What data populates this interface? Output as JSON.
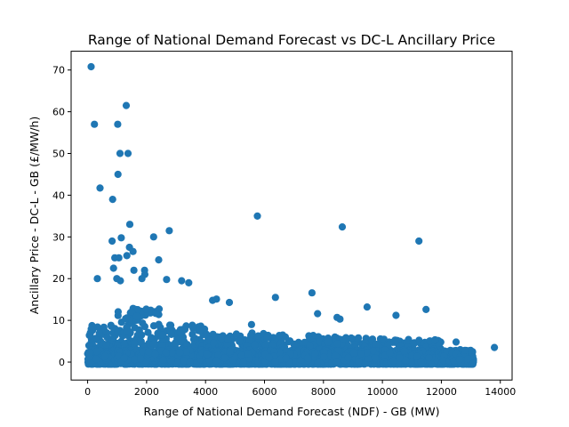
{
  "chart_data": {
    "type": "scatter",
    "title": "Range of National Demand Forecast vs DC-L Ancillary Price",
    "xlabel": "Range of National Demand Forecast (NDF) - GB (MW)",
    "ylabel": "Ancillary Price - DC-L - GB (£/MW/h)",
    "xlim": [
      -560,
      14400
    ],
    "ylim": [
      -4.3,
      74.5
    ],
    "x_ticks": [
      0,
      2000,
      4000,
      6000,
      8000,
      10000,
      12000,
      14000
    ],
    "y_ticks": [
      0,
      10,
      20,
      30,
      40,
      50,
      60,
      70
    ],
    "grid": false,
    "legend": "none",
    "marker_color": "#1f77b4",
    "outlier_points": [
      [
        120,
        70.8
      ],
      [
        230,
        57
      ],
      [
        1020,
        57
      ],
      [
        1310,
        61.5
      ],
      [
        1370,
        50
      ],
      [
        1100,
        50
      ],
      [
        1030,
        45
      ],
      [
        420,
        41.7
      ],
      [
        850,
        39
      ],
      [
        1430,
        33
      ],
      [
        5760,
        35
      ],
      [
        8640,
        32.4
      ],
      [
        11240,
        29
      ],
      [
        2770,
        31.5
      ],
      [
        2240,
        30
      ],
      [
        1140,
        29.8
      ],
      [
        830,
        29
      ],
      [
        1420,
        27.5
      ],
      [
        1540,
        26.5
      ],
      [
        920,
        25
      ],
      [
        1060,
        25
      ],
      [
        1330,
        25.5
      ],
      [
        2410,
        24.5
      ],
      [
        1570,
        22
      ],
      [
        1930,
        22
      ],
      [
        1940,
        21
      ],
      [
        880,
        22.5
      ],
      [
        330,
        20
      ],
      [
        990,
        20
      ],
      [
        1110,
        19.5
      ],
      [
        1840,
        20
      ],
      [
        2680,
        19.8
      ],
      [
        3190,
        19.5
      ],
      [
        3430,
        19
      ],
      [
        4240,
        14.8
      ],
      [
        4370,
        15.1
      ],
      [
        4810,
        14.3
      ],
      [
        6370,
        15.5
      ],
      [
        7610,
        16.6
      ],
      [
        7800,
        11.6
      ],
      [
        8460,
        10.7
      ],
      [
        8560,
        10.3
      ],
      [
        9480,
        13.2
      ],
      [
        10460,
        11.2
      ],
      [
        11480,
        12.6
      ],
      [
        5560,
        9
      ]
    ],
    "dense_band": [
      {
        "x": [
          0,
          1000
        ],
        "y_max": 9
      },
      {
        "x": [
          1000,
          2500
        ],
        "y_max": 13
      },
      {
        "x": [
          2500,
          4000
        ],
        "y_max": 9
      },
      {
        "x": [
          4000,
          6000
        ],
        "y_max": 7
      },
      {
        "x": [
          6000,
          8000
        ],
        "y_max": 6.5
      },
      {
        "x": [
          8000,
          10000
        ],
        "y_max": 6
      },
      {
        "x": [
          10000,
          12000
        ],
        "y_max": 5.5
      },
      {
        "x": [
          12000,
          13100
        ],
        "y_max": 3
      }
    ],
    "tail_points": [
      [
        12500,
        4.8
      ],
      [
        12800,
        2.8
      ],
      [
        13000,
        1.2
      ],
      [
        13800,
        3.5
      ],
      [
        12900,
        0.8
      ]
    ]
  }
}
